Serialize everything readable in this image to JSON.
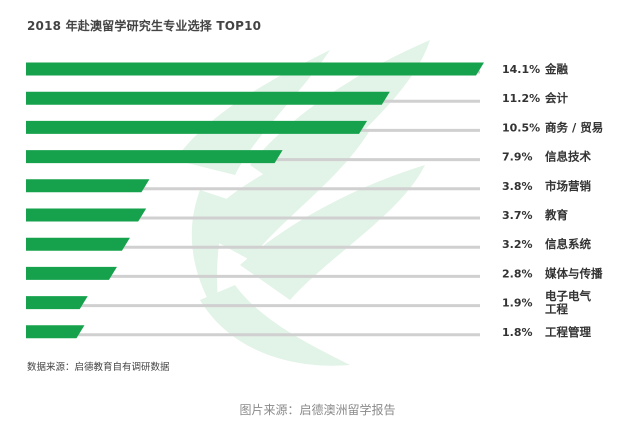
{
  "chart_data": {
    "type": "bar",
    "orientation": "horizontal",
    "title": "2018 年赴澳留学研究生专业选择 TOP10",
    "categories": [
      "金融",
      "会计",
      "商务 / 贸易",
      "信息技术",
      "市场营销",
      "教育",
      "信息系统",
      "媒体与传播",
      "电子电气工程",
      "工程管理"
    ],
    "values": [
      14.1,
      11.2,
      10.5,
      7.9,
      3.8,
      3.7,
      3.2,
      2.8,
      1.9,
      1.8
    ],
    "value_labels": [
      "14.1%",
      "11.2%",
      "10.5%",
      "7.9%",
      "3.8%",
      "3.7%",
      "3.2%",
      "2.8%",
      "1.9%",
      "1.8%"
    ],
    "category_lines": [
      [
        "金融"
      ],
      [
        "会计"
      ],
      [
        "商务 / 贸易"
      ],
      [
        "信息技术"
      ],
      [
        "市场营销"
      ],
      [
        "教育"
      ],
      [
        "信息系统"
      ],
      [
        "媒体与传播"
      ],
      [
        "电子电气",
        "工程"
      ],
      [
        "工程管理"
      ]
    ],
    "unit": "%",
    "xlabel": "",
    "ylabel": "",
    "source": "数据来源：启德教育自有调研数据",
    "colors": {
      "bar": "#16A24C",
      "track": "#D0D0D0",
      "watermark": "#E2F3E7",
      "text": "#333333"
    }
  },
  "caption": "图片来源：启德澳洲留学报告"
}
